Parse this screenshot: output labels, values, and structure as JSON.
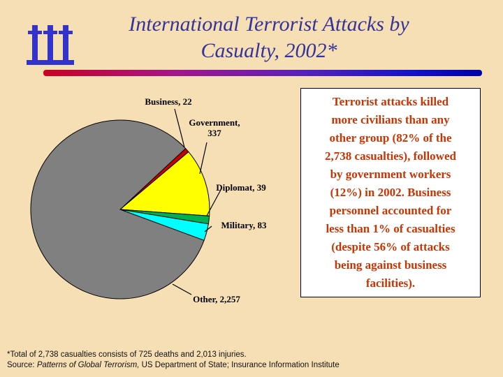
{
  "slide": {
    "title_line1": "International Terrorist Attacks by",
    "title_line2": "Casualty, 2002*",
    "commentary": "Terrorist attacks killed\nmore civilians than any\nother group (82% of the\n2,738 casualties), followed\nby government workers\n(12%) in 2002.  Business\npersonnel accounted for\nless than 1% of casualties\n(despite 56% of attacks\nbeing against business\nfacilities).",
    "footnote": "*Total of 2,738 casualties consists of 725 deaths and 2,013 injuries.",
    "source_label": "Source: ",
    "source_title_italic": "Patterns of Global Terrorism,",
    "source_rest": " US Department of State; Insurance Information Institute"
  },
  "chart_data": {
    "type": "pie",
    "title": "International Terrorist Attacks by Casualty, 2002",
    "categories": [
      "Business",
      "Government",
      "Diplomat",
      "Military",
      "Other"
    ],
    "values": [
      22,
      337,
      39,
      83,
      2257
    ],
    "percent_of_total": [
      0.8,
      12.3,
      1.4,
      3.0,
      82.4
    ],
    "total": 2738,
    "labels": [
      "Business, 22",
      "Government, 337",
      "Diplomat, 39",
      "Military, 83",
      "Other, 2,257"
    ],
    "colors": [
      "#cc0000",
      "#ffff00",
      "#00b050",
      "#00ffff",
      "#808080"
    ],
    "start_angle_deg": 47,
    "legend_position": "external-labels-with-leader-lines"
  },
  "theme": {
    "background": "#f6dfb4",
    "title_color": "#333399",
    "commentary_color": "#cc3300",
    "logo_color": "#3333cc"
  }
}
